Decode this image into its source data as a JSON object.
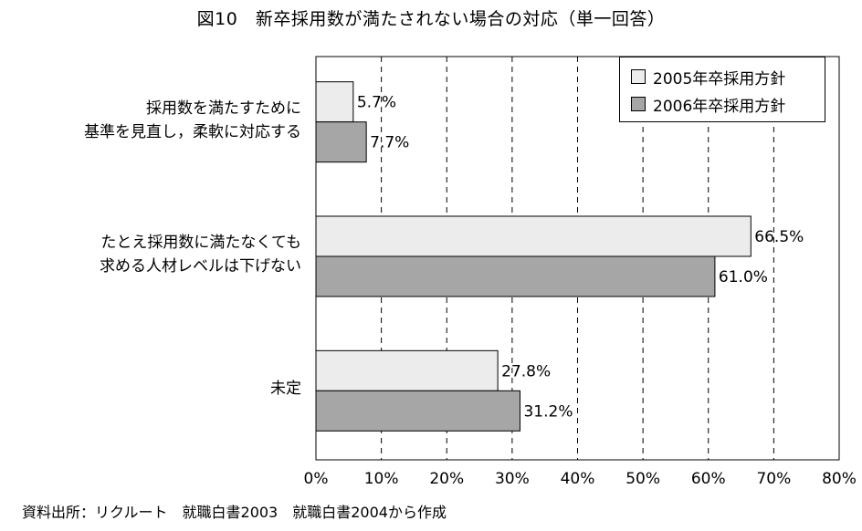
{
  "title": "図10　新卒採用数が満たされない場合の対応（単一回答）",
  "source": "資料出所：リクルート　就職白書2003　就職白書2004から作成",
  "chart_data": {
    "type": "bar",
    "orientation": "horizontal",
    "categories": [
      [
        "採用数を満たすために",
        "基準を見直し，柔軟に対応する"
      ],
      [
        "たとえ採用数に満たなくても",
        "求める人材レベルは下げない"
      ],
      [
        "未定"
      ]
    ],
    "series": [
      {
        "name": "2005年卒採用方針",
        "values": [
          5.7,
          66.5,
          27.8
        ],
        "labels": [
          "5.7%",
          "66.5%",
          "27.8%"
        ],
        "color": "#ececec"
      },
      {
        "name": "2006年卒採用方針",
        "values": [
          7.7,
          61.0,
          31.2
        ],
        "labels": [
          "7.7%",
          "61.0%",
          "31.2%"
        ],
        "color": "#a6a6a6"
      }
    ],
    "xlim": [
      0,
      80
    ],
    "xticks": [
      "0%",
      "10%",
      "20%",
      "30%",
      "40%",
      "50%",
      "60%",
      "70%",
      "80%"
    ],
    "grid": "vertical dashed",
    "legend_position": "top-right"
  }
}
